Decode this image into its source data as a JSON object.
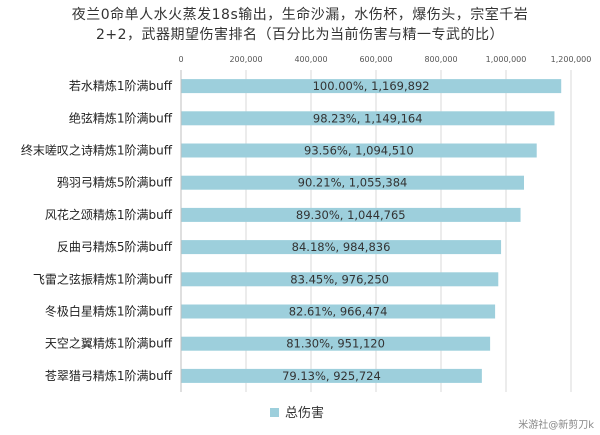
{
  "chart_data": {
    "type": "bar",
    "orientation": "horizontal",
    "title_lines": [
      "夜兰0命单人水火蒸发18s输出，生命沙漏，水伤杯，爆伤头，宗室千岩",
      "2+2，武器期望伤害排名（百分比为当前伤害与精一专武的比）"
    ],
    "categories": [
      "若水精炼1阶满buff",
      "绝弦精炼1阶满buff",
      "终末嗟叹之诗精炼1阶满buff",
      "鸦羽弓精炼5阶满buff",
      "风花之颂精炼1阶满buff",
      "反曲弓精炼5阶满buff",
      "飞雷之弦振精炼1阶满buff",
      "冬极白星精炼1阶满buff",
      "天空之翼精炼1阶满buff",
      "苍翠猎弓精炼1阶满buff"
    ],
    "series": [
      {
        "name": "总伤害",
        "color": "#9dcfdc",
        "values": [
          1169892,
          1149164,
          1094510,
          1055384,
          1044765,
          984836,
          976250,
          966474,
          951120,
          925724
        ],
        "data_labels": [
          "100.00%, 1,169,892",
          "98.23%, 1,149,164",
          "93.56%, 1,094,510",
          "90.21%, 1,055,384",
          "89.30%, 1,044,765",
          "84.18%, 984,836",
          "83.45%, 976,250",
          "82.61%, 966,474",
          "81.30%, 951,120",
          "79.13%, 925,724"
        ]
      }
    ],
    "xlim": [
      0,
      1200000
    ],
    "x_ticks": [
      0,
      200000,
      400000,
      600000,
      800000,
      1000000,
      1200000
    ],
    "x_tick_labels": [
      "0",
      "200,000",
      "400,000",
      "600,000",
      "800,000",
      "1,000,000",
      "1,200,000"
    ],
    "grid": true,
    "legend_position": "bottom-left"
  },
  "watermark": "米游社@新剪刀k"
}
